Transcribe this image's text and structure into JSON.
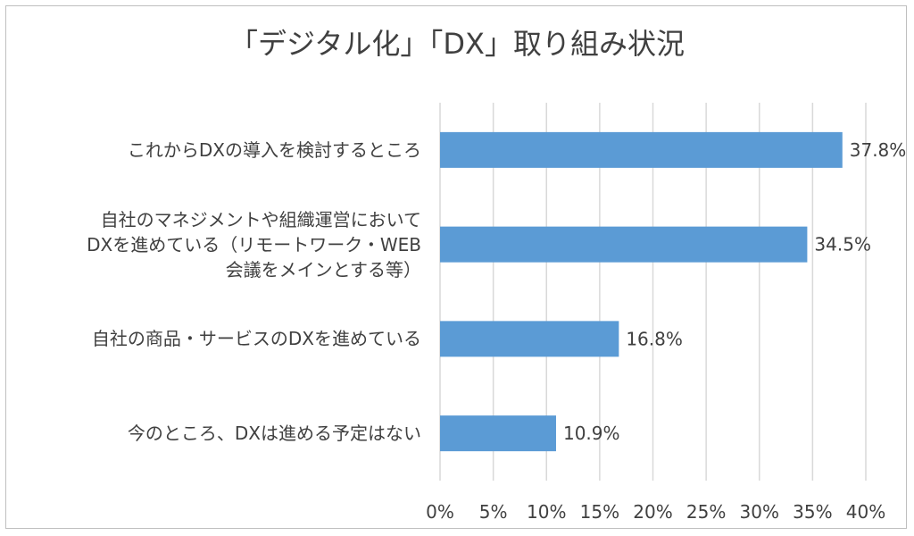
{
  "chart_data": {
    "type": "bar",
    "orientation": "horizontal",
    "title": "「デジタル化」「DX」取り組み状況",
    "categories": [
      [
        "これからDXの導入を検討するところ"
      ],
      [
        "自社のマネジメントや組織運営において",
        "DXを進めている（リモートワーク・WEB",
        "会議をメインとする等）"
      ],
      [
        "自社の商品・サービスのDXを進めている"
      ],
      [
        "今のところ、DXは進める予定はない"
      ]
    ],
    "values": [
      37.8,
      34.5,
      16.8,
      10.9
    ],
    "value_labels": [
      "37.8%",
      "34.5%",
      "16.8%",
      "10.9%"
    ],
    "xlim": [
      0,
      40
    ],
    "xticks": [
      0,
      5,
      10,
      15,
      20,
      25,
      30,
      35,
      40
    ],
    "xtick_labels": [
      "0%",
      "5%",
      "10%",
      "15%",
      "20%",
      "25%",
      "30%",
      "35%",
      "40%"
    ],
    "grid": "vertical",
    "legend": "none",
    "colors": {
      "bar": "#5b9bd5",
      "grid": "#d9d9d9",
      "text": "#404040"
    }
  }
}
